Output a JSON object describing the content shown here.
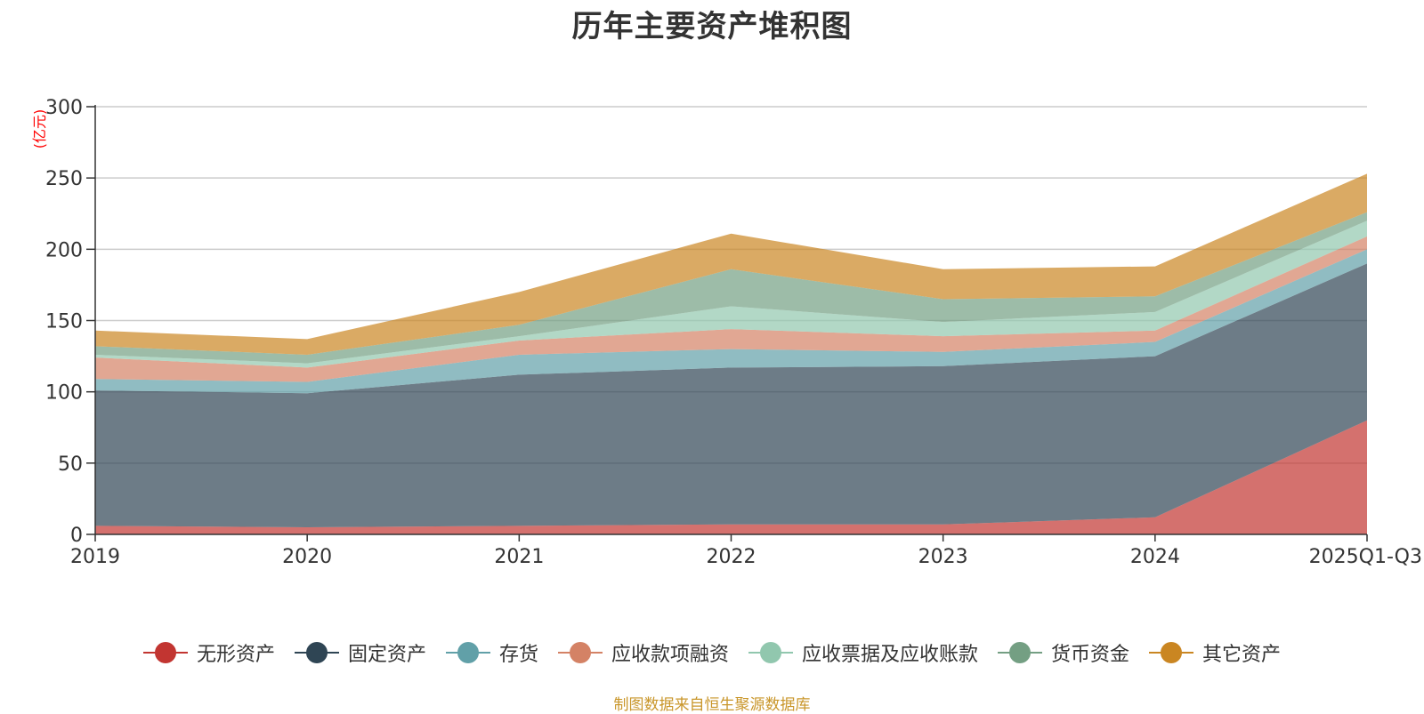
{
  "chart_data": {
    "type": "area",
    "stacked": true,
    "title": "历年主要资产堆积图",
    "ylabel": "(亿元)",
    "xlabel": "",
    "ylim": [
      0,
      300
    ],
    "yticks": [
      0,
      50,
      100,
      150,
      200,
      250,
      300
    ],
    "categories": [
      "2019",
      "2020",
      "2021",
      "2022",
      "2023",
      "2024",
      "2025Q1-Q3"
    ],
    "series": [
      {
        "name": "无形资产",
        "color": "#c23531",
        "values": [
          6,
          5,
          6,
          7,
          7,
          12,
          80
        ]
      },
      {
        "name": "固定资产",
        "color": "#2f4554",
        "values": [
          95,
          94,
          106,
          110,
          111,
          113,
          110
        ]
      },
      {
        "name": "存货",
        "color": "#61a0a8",
        "values": [
          8,
          8,
          14,
          13,
          10,
          10,
          10
        ]
      },
      {
        "name": "应收款项融资",
        "color": "#d48265",
        "values": [
          15,
          10,
          10,
          14,
          11,
          8,
          9
        ]
      },
      {
        "name": "应收票据及应收账款",
        "color": "#91c7ae",
        "values": [
          2,
          3,
          3,
          16,
          10,
          13,
          11
        ]
      },
      {
        "name": "货币资金",
        "color": "#749f83",
        "values": [
          6,
          6,
          8,
          26,
          16,
          11,
          6
        ]
      },
      {
        "name": "其它资产",
        "color": "#ca8622",
        "values": [
          11,
          11,
          23,
          25,
          21,
          21,
          27
        ]
      }
    ]
  },
  "source_note": "制图数据来自恒生聚源数据库"
}
